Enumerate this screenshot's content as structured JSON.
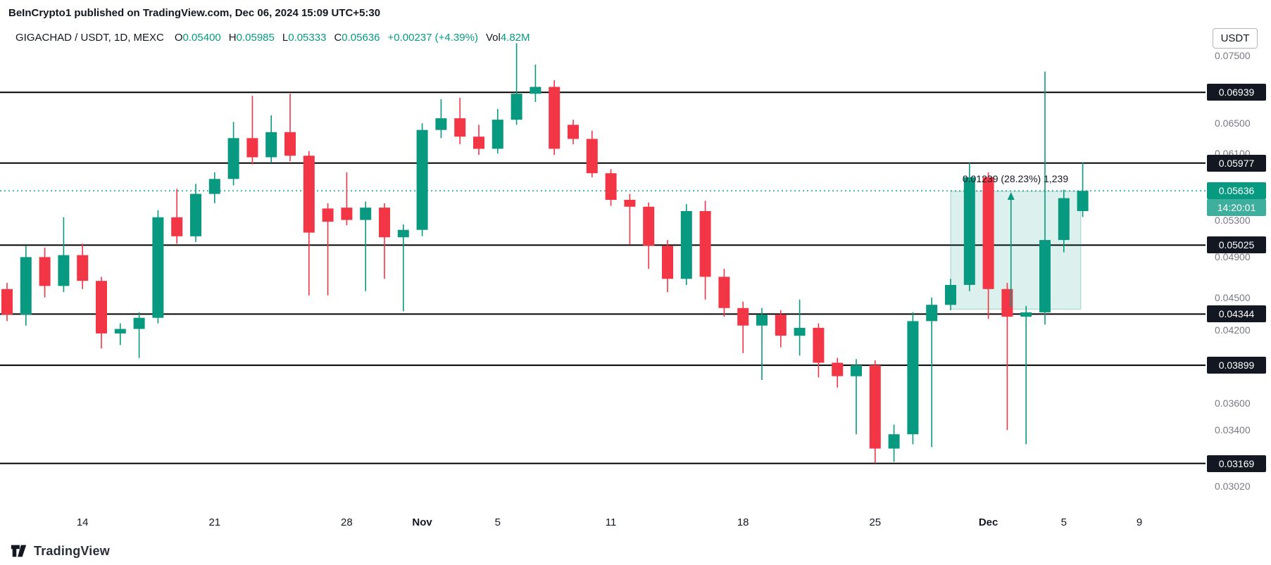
{
  "header": {
    "attribution": "BeInCrypto1 published on TradingView.com, Dec 06, 2024 15:09 UTC+5:30"
  },
  "legend": {
    "symbol": "GIGACHAD / USDT, 1D, MEXC",
    "ohlc": [
      {
        "k": "O",
        "v": "0.05400"
      },
      {
        "k": "H",
        "v": "0.05985"
      },
      {
        "k": "L",
        "v": "0.05333"
      },
      {
        "k": "C",
        "v": "0.05636"
      }
    ],
    "change": "+0.00237 (+4.39%)",
    "vol_label": "Vol",
    "vol_value": "4.82M"
  },
  "axis_button": {
    "label": "USDT"
  },
  "logo": {
    "text": "TradingView"
  },
  "colors": {
    "up": "#089981",
    "down": "#F23645",
    "level_line": "#000000",
    "badge_bg": "#131722",
    "last_price_bg": "#089981",
    "measure_fill": "rgba(8,153,129,0.14)",
    "measure_stroke": "rgba(8,153,129,0.35)"
  },
  "chart_data": {
    "type": "candlestick",
    "symbol": "GIGACHAD / USDT",
    "timeframe": "1D",
    "exchange": "MEXC",
    "price_scale": "log",
    "last": {
      "open": 0.054,
      "high": 0.05985,
      "low": 0.05333,
      "close": 0.05636,
      "change": "+0.00237",
      "change_pct": "+4.39%",
      "volume": "4.82M"
    },
    "current_price": 0.05636,
    "countdown": "14:20:01",
    "y_ticks": [
      0.075,
      0.065,
      0.061,
      0.057,
      0.053,
      0.049,
      0.045,
      0.042,
      0.036,
      0.034,
      0.0302
    ],
    "level_lines": [
      0.06939,
      0.05977,
      0.05025,
      0.04344,
      0.03899,
      0.03169
    ],
    "x_ticks": [
      {
        "label": "14",
        "i": 4
      },
      {
        "label": "21",
        "i": 11
      },
      {
        "label": "28",
        "i": 18
      },
      {
        "label": "Nov",
        "i": 22,
        "bold": true
      },
      {
        "label": "5",
        "i": 26
      },
      {
        "label": "11",
        "i": 32
      },
      {
        "label": "18",
        "i": 39
      },
      {
        "label": "25",
        "i": 46
      },
      {
        "label": "Dec",
        "i": 52,
        "bold": true
      },
      {
        "label": "5",
        "i": 56
      },
      {
        "label": "9",
        "i": 60
      }
    ],
    "measure": {
      "label": "0.01239 (28.23%) 1,239",
      "from": 0.0439,
      "to": 0.0563,
      "start_i": 50,
      "end_i": 56.9,
      "arrow_i": 53.2
    },
    "candles": [
      [
        0.0458,
        0.0464,
        0.0428,
        0.0434
      ],
      [
        0.0434,
        0.0502,
        0.0424,
        0.049
      ],
      [
        0.049,
        0.05,
        0.045,
        0.0461
      ],
      [
        0.0461,
        0.0533,
        0.0455,
        0.0492
      ],
      [
        0.0492,
        0.0504,
        0.0458,
        0.0466
      ],
      [
        0.0466,
        0.047,
        0.0404,
        0.0417
      ],
      [
        0.0417,
        0.0426,
        0.0407,
        0.0421
      ],
      [
        0.0421,
        0.0436,
        0.0396,
        0.0431
      ],
      [
        0.0431,
        0.0541,
        0.0426,
        0.0533
      ],
      [
        0.0533,
        0.0566,
        0.0504,
        0.0512
      ],
      [
        0.0512,
        0.0572,
        0.0506,
        0.056
      ],
      [
        0.056,
        0.0586,
        0.0549,
        0.0578
      ],
      [
        0.0578,
        0.0652,
        0.057,
        0.063
      ],
      [
        0.063,
        0.0689,
        0.0596,
        0.0605
      ],
      [
        0.0605,
        0.0661,
        0.0598,
        0.0638
      ],
      [
        0.0638,
        0.0692,
        0.06,
        0.0607
      ],
      [
        0.0607,
        0.0613,
        0.0452,
        0.0516
      ],
      [
        0.0543,
        0.0549,
        0.0452,
        0.0528
      ],
      [
        0.0544,
        0.0586,
        0.0524,
        0.053
      ],
      [
        0.053,
        0.0551,
        0.0456,
        0.0544
      ],
      [
        0.0544,
        0.0549,
        0.0468,
        0.0511
      ],
      [
        0.0511,
        0.0525,
        0.0437,
        0.0519
      ],
      [
        0.0519,
        0.065,
        0.0512,
        0.0641
      ],
      [
        0.0641,
        0.0684,
        0.063,
        0.0657
      ],
      [
        0.0657,
        0.0686,
        0.0622,
        0.0632
      ],
      [
        0.0632,
        0.0648,
        0.0608,
        0.0616
      ],
      [
        0.0616,
        0.067,
        0.061,
        0.0655
      ],
      [
        0.0655,
        0.077,
        0.0648,
        0.0692
      ],
      [
        0.0692,
        0.0736,
        0.068,
        0.0702
      ],
      [
        0.0702,
        0.0712,
        0.0608,
        0.0616
      ],
      [
        0.0648,
        0.0655,
        0.0622,
        0.0629
      ],
      [
        0.0629,
        0.064,
        0.058,
        0.0585
      ],
      [
        0.0585,
        0.059,
        0.0546,
        0.0553
      ],
      [
        0.0553,
        0.056,
        0.0503,
        0.0545
      ],
      [
        0.0545,
        0.055,
        0.0478,
        0.0502
      ],
      [
        0.0502,
        0.0508,
        0.0455,
        0.0468
      ],
      [
        0.0468,
        0.0548,
        0.0462,
        0.054
      ],
      [
        0.054,
        0.0552,
        0.0448,
        0.047
      ],
      [
        0.047,
        0.0478,
        0.0432,
        0.044
      ],
      [
        0.044,
        0.0446,
        0.04,
        0.0424
      ],
      [
        0.0424,
        0.044,
        0.0378,
        0.0434
      ],
      [
        0.0434,
        0.0438,
        0.0405,
        0.0415
      ],
      [
        0.0415,
        0.0448,
        0.0398,
        0.0422
      ],
      [
        0.0422,
        0.0426,
        0.038,
        0.0392
      ],
      [
        0.0392,
        0.0396,
        0.0372,
        0.0381
      ],
      [
        0.0381,
        0.0395,
        0.0337,
        0.039
      ],
      [
        0.039,
        0.0394,
        0.0317,
        0.0327
      ],
      [
        0.0327,
        0.0344,
        0.0318,
        0.0337
      ],
      [
        0.0337,
        0.0436,
        0.033,
        0.0428
      ],
      [
        0.0428,
        0.045,
        0.0328,
        0.0443
      ],
      [
        0.0443,
        0.0468,
        0.0438,
        0.0462
      ],
      [
        0.0462,
        0.0598,
        0.0456,
        0.058
      ],
      [
        0.058,
        0.0586,
        0.043,
        0.0458
      ],
      [
        0.0458,
        0.0464,
        0.034,
        0.0432
      ],
      [
        0.0432,
        0.0442,
        0.033,
        0.0436
      ],
      [
        0.0436,
        0.0725,
        0.0425,
        0.0508
      ],
      [
        0.0508,
        0.0565,
        0.0495,
        0.0555
      ],
      [
        0.054,
        0.05985,
        0.05333,
        0.05636
      ]
    ]
  }
}
